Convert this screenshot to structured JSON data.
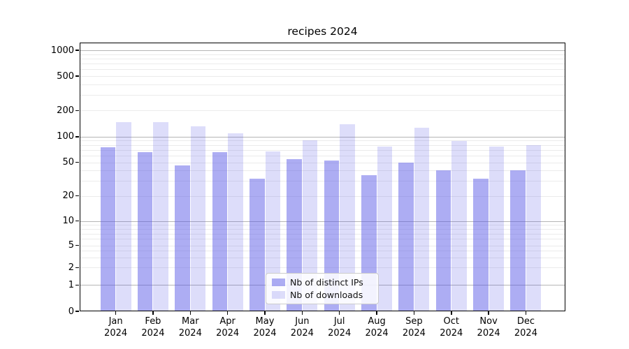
{
  "chart_data": {
    "type": "bar",
    "title": "recipes 2024",
    "categories": [
      "Jan",
      "Feb",
      "Mar",
      "Apr",
      "May",
      "Jun",
      "Jul",
      "Aug",
      "Sep",
      "Oct",
      "Nov",
      "Dec"
    ],
    "category_year": "2024",
    "series": [
      {
        "name": "Nb of distinct IPs",
        "color": "rgba(84,84,230,0.48)",
        "values": [
          75,
          66,
          46,
          66,
          32,
          55,
          53,
          35,
          50,
          40,
          32,
          40
        ]
      },
      {
        "name": "Nb of downloads",
        "color": "rgba(84,84,230,0.2)",
        "values": [
          148,
          146,
          132,
          110,
          67,
          91,
          138,
          77,
          127,
          89,
          77,
          80
        ]
      }
    ],
    "yscale": "symlog",
    "ylim": [
      0,
      1200
    ],
    "yticks": [
      0,
      1,
      2,
      5,
      10,
      20,
      50,
      100,
      200,
      500,
      1000
    ],
    "minor_yticks": [
      3,
      4,
      6,
      7,
      8,
      9,
      30,
      40,
      60,
      70,
      80,
      90,
      300,
      400,
      600,
      700,
      800,
      900
    ],
    "major_grid_values": [
      1,
      10,
      100,
      1000
    ],
    "grid": true,
    "legend_position": "lower center",
    "colors": {
      "major_grid": "#b5b5b5",
      "minor_grid": "#ebebeb",
      "spine": "#000000",
      "background": "#ffffff"
    }
  }
}
